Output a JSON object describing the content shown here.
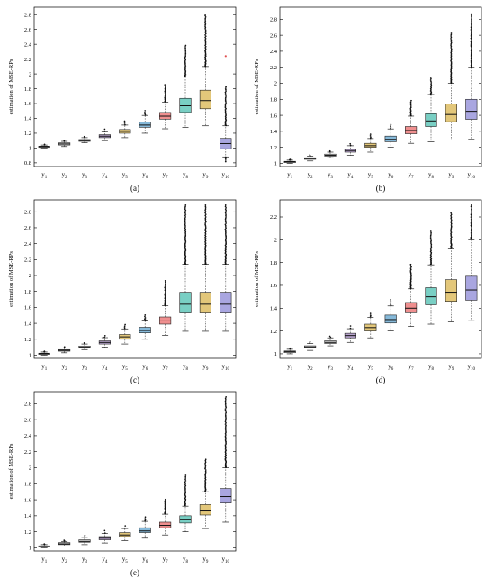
{
  "colors": [
    "#d9d9d9",
    "#d9d9d9",
    "#d9d9d9",
    "#b9a5cf",
    "#e3c77a",
    "#86b9d9",
    "#ef8f8f",
    "#79cfc4",
    "#e3c77a",
    "#a9a6e0"
  ],
  "categories": [
    {
      "base": "y",
      "sub": "1"
    },
    {
      "base": "y",
      "sub": "2"
    },
    {
      "base": "y",
      "sub": "3"
    },
    {
      "base": "y",
      "sub": "4"
    },
    {
      "base": "y",
      "sub": "5"
    },
    {
      "base": "y",
      "sub": "6"
    },
    {
      "base": "y",
      "sub": "7"
    },
    {
      "base": "y",
      "sub": "8"
    },
    {
      "base": "y",
      "sub": "9"
    },
    {
      "base": "y",
      "sub": "10"
    }
  ],
  "chart_data": [
    {
      "type": "box",
      "panel_label": "(a)",
      "ylabel": "estimation of MSE-RPs",
      "ylim": [
        0.75,
        2.9
      ],
      "yticks": [
        "0.8",
        "1",
        "1.2",
        "1.4",
        "1.6",
        "1.8",
        "2",
        "2.2",
        "2.4",
        "2.6",
        "2.8"
      ],
      "boxes": [
        {
          "q1": 1.01,
          "med": 1.02,
          "q3": 1.025,
          "lo": 1.0,
          "hi": 1.04,
          "out_hi": 1.045,
          "out_lo": null
        },
        {
          "q1": 1.04,
          "med": 1.055,
          "q3": 1.07,
          "lo": 1.02,
          "hi": 1.09,
          "out_hi": 1.1,
          "out_lo": null
        },
        {
          "q1": 1.09,
          "med": 1.1,
          "q3": 1.115,
          "lo": 1.07,
          "hi": 1.14,
          "out_hi": 1.15,
          "out_lo": null
        },
        {
          "q1": 1.14,
          "med": 1.16,
          "q3": 1.18,
          "lo": 1.1,
          "hi": 1.22,
          "out_hi": 1.25,
          "out_lo": null
        },
        {
          "q1": 1.2,
          "med": 1.225,
          "q3": 1.25,
          "lo": 1.14,
          "hi": 1.31,
          "out_hi": 1.36,
          "out_lo": null
        },
        {
          "q1": 1.28,
          "med": 1.31,
          "q3": 1.35,
          "lo": 1.2,
          "hi": 1.44,
          "out_hi": 1.5,
          "out_lo": null
        },
        {
          "q1": 1.39,
          "med": 1.43,
          "q3": 1.48,
          "lo": 1.26,
          "hi": 1.62,
          "out_hi": 1.85,
          "out_lo": null
        },
        {
          "q1": 1.48,
          "med": 1.57,
          "q3": 1.67,
          "lo": 1.28,
          "hi": 1.96,
          "out_hi": 2.38,
          "out_lo": null
        },
        {
          "q1": 1.53,
          "med": 1.64,
          "q3": 1.78,
          "lo": 1.3,
          "hi": 2.1,
          "out_hi": 2.8,
          "out_lo": null
        },
        {
          "q1": 0.99,
          "med": 1.06,
          "q3": 1.13,
          "lo": 0.88,
          "hi": 1.3,
          "out_hi": 1.82,
          "out_lo": 0.82,
          "extra": 2.24
        }
      ]
    },
    {
      "type": "box",
      "panel_label": "(b)",
      "ylabel": "estimation of MSE-RPs",
      "ylim": [
        0.96,
        2.95
      ],
      "yticks": [
        "1",
        "1.2",
        "1.4",
        "1.6",
        "1.8",
        "2",
        "2.2",
        "2.4",
        "2.6",
        "2.8"
      ],
      "boxes": [
        {
          "q1": 1.01,
          "med": 1.02,
          "q3": 1.025,
          "lo": 1.0,
          "hi": 1.04,
          "out_hi": 1.045,
          "out_lo": null
        },
        {
          "q1": 1.05,
          "med": 1.06,
          "q3": 1.07,
          "lo": 1.03,
          "hi": 1.09,
          "out_hi": 1.1,
          "out_lo": null
        },
        {
          "q1": 1.09,
          "med": 1.1,
          "q3": 1.115,
          "lo": 1.07,
          "hi": 1.14,
          "out_hi": 1.15,
          "out_lo": null
        },
        {
          "q1": 1.14,
          "med": 1.16,
          "q3": 1.18,
          "lo": 1.1,
          "hi": 1.22,
          "out_hi": 1.24,
          "out_lo": null
        },
        {
          "q1": 1.2,
          "med": 1.22,
          "q3": 1.25,
          "lo": 1.14,
          "hi": 1.31,
          "out_hi": 1.36,
          "out_lo": null
        },
        {
          "q1": 1.27,
          "med": 1.3,
          "q3": 1.34,
          "lo": 1.2,
          "hi": 1.43,
          "out_hi": 1.48,
          "out_lo": null
        },
        {
          "q1": 1.37,
          "med": 1.41,
          "q3": 1.46,
          "lo": 1.25,
          "hi": 1.59,
          "out_hi": 1.78,
          "out_lo": null
        },
        {
          "q1": 1.46,
          "med": 1.53,
          "q3": 1.62,
          "lo": 1.27,
          "hi": 1.86,
          "out_hi": 2.07,
          "out_lo": null
        },
        {
          "q1": 1.52,
          "med": 1.61,
          "q3": 1.74,
          "lo": 1.29,
          "hi": 2.0,
          "out_hi": 2.62,
          "out_lo": null
        },
        {
          "q1": 1.55,
          "med": 1.65,
          "q3": 1.8,
          "lo": 1.3,
          "hi": 2.2,
          "out_hi": 2.86,
          "out_lo": null
        }
      ]
    },
    {
      "type": "box",
      "panel_label": "(c)",
      "ylabel": "estimation of MSE-RPs",
      "ylim": [
        0.96,
        2.95
      ],
      "yticks": [
        "1",
        "1.2",
        "1.4",
        "1.6",
        "1.8",
        "2",
        "2.2",
        "2.4",
        "2.6",
        "2.8"
      ],
      "boxes": [
        {
          "q1": 1.01,
          "med": 1.02,
          "q3": 1.025,
          "lo": 1.0,
          "hi": 1.04,
          "out_hi": 1.045,
          "out_lo": null
        },
        {
          "q1": 1.05,
          "med": 1.06,
          "q3": 1.07,
          "lo": 1.03,
          "hi": 1.09,
          "out_hi": 1.1,
          "out_lo": null
        },
        {
          "q1": 1.09,
          "med": 1.1,
          "q3": 1.115,
          "lo": 1.07,
          "hi": 1.14,
          "out_hi": 1.15,
          "out_lo": null
        },
        {
          "q1": 1.14,
          "med": 1.16,
          "q3": 1.18,
          "lo": 1.1,
          "hi": 1.22,
          "out_hi": 1.24,
          "out_lo": null
        },
        {
          "q1": 1.2,
          "med": 1.23,
          "q3": 1.26,
          "lo": 1.14,
          "hi": 1.33,
          "out_hi": 1.38,
          "out_lo": null
        },
        {
          "q1": 1.28,
          "med": 1.31,
          "q3": 1.35,
          "lo": 1.2,
          "hi": 1.44,
          "out_hi": 1.5,
          "out_lo": null
        },
        {
          "q1": 1.39,
          "med": 1.43,
          "q3": 1.48,
          "lo": 1.25,
          "hi": 1.62,
          "out_hi": 1.93,
          "out_lo": null
        },
        {
          "q1": 1.53,
          "med": 1.64,
          "q3": 1.79,
          "lo": 1.3,
          "hi": 2.14,
          "out_hi": 2.88,
          "out_lo": null
        },
        {
          "q1": 1.53,
          "med": 1.64,
          "q3": 1.79,
          "lo": 1.3,
          "hi": 2.14,
          "out_hi": 2.88,
          "out_lo": null
        },
        {
          "q1": 1.53,
          "med": 1.64,
          "q3": 1.79,
          "lo": 1.3,
          "hi": 2.14,
          "out_hi": 2.88,
          "out_lo": null
        }
      ]
    },
    {
      "type": "box",
      "panel_label": "(d)",
      "ylabel": "estimation of MSE-RPs",
      "ylim": [
        0.96,
        2.35
      ],
      "yticks": [
        "1",
        "1.2",
        "1.4",
        "1.6",
        "1.8",
        "2",
        "2.2"
      ],
      "boxes": [
        {
          "q1": 1.01,
          "med": 1.02,
          "q3": 1.025,
          "lo": 1.0,
          "hi": 1.04,
          "out_hi": 1.045,
          "out_lo": null
        },
        {
          "q1": 1.05,
          "med": 1.06,
          "q3": 1.07,
          "lo": 1.03,
          "hi": 1.09,
          "out_hi": 1.1,
          "out_lo": null
        },
        {
          "q1": 1.09,
          "med": 1.1,
          "q3": 1.115,
          "lo": 1.07,
          "hi": 1.14,
          "out_hi": 1.15,
          "out_lo": null
        },
        {
          "q1": 1.14,
          "med": 1.16,
          "q3": 1.18,
          "lo": 1.1,
          "hi": 1.22,
          "out_hi": 1.24,
          "out_lo": null
        },
        {
          "q1": 1.2,
          "med": 1.23,
          "q3": 1.26,
          "lo": 1.14,
          "hi": 1.32,
          "out_hi": 1.36,
          "out_lo": null
        },
        {
          "q1": 1.27,
          "med": 1.3,
          "q3": 1.34,
          "lo": 1.2,
          "hi": 1.42,
          "out_hi": 1.47,
          "out_lo": null
        },
        {
          "q1": 1.36,
          "med": 1.4,
          "q3": 1.45,
          "lo": 1.24,
          "hi": 1.57,
          "out_hi": 1.78,
          "out_lo": null
        },
        {
          "q1": 1.43,
          "med": 1.5,
          "q3": 1.58,
          "lo": 1.26,
          "hi": 1.78,
          "out_hi": 2.07,
          "out_lo": null
        },
        {
          "q1": 1.46,
          "med": 1.54,
          "q3": 1.65,
          "lo": 1.28,
          "hi": 1.92,
          "out_hi": 2.23,
          "out_lo": null
        },
        {
          "q1": 1.47,
          "med": 1.56,
          "q3": 1.68,
          "lo": 1.29,
          "hi": 2.0,
          "out_hi": 2.3,
          "out_lo": null
        }
      ]
    },
    {
      "type": "box",
      "panel_label": "(e)",
      "ylabel": "estimation of MSE-RPs",
      "ylim": [
        0.96,
        2.95
      ],
      "yticks": [
        "1",
        "1.2",
        "1.4",
        "1.6",
        "1.8",
        "2",
        "2.2",
        "2.4",
        "2.6",
        "2.8"
      ],
      "boxes": [
        {
          "q1": 1.01,
          "med": 1.02,
          "q3": 1.025,
          "lo": 1.0,
          "hi": 1.04,
          "out_hi": 1.045,
          "out_lo": null
        },
        {
          "q1": 1.04,
          "med": 1.05,
          "q3": 1.065,
          "lo": 1.02,
          "hi": 1.08,
          "out_hi": 1.09,
          "out_lo": null
        },
        {
          "q1": 1.07,
          "med": 1.08,
          "q3": 1.1,
          "lo": 1.04,
          "hi": 1.13,
          "out_hi": 1.15,
          "out_lo": null
        },
        {
          "q1": 1.1,
          "med": 1.12,
          "q3": 1.14,
          "lo": 1.06,
          "hi": 1.18,
          "out_hi": 1.21,
          "out_lo": null
        },
        {
          "q1": 1.14,
          "med": 1.16,
          "q3": 1.19,
          "lo": 1.09,
          "hi": 1.24,
          "out_hi": 1.27,
          "out_lo": null
        },
        {
          "q1": 1.19,
          "med": 1.21,
          "q3": 1.25,
          "lo": 1.12,
          "hi": 1.33,
          "out_hi": 1.38,
          "out_lo": null
        },
        {
          "q1": 1.25,
          "med": 1.28,
          "q3": 1.32,
          "lo": 1.16,
          "hi": 1.42,
          "out_hi": 1.6,
          "out_lo": null
        },
        {
          "q1": 1.31,
          "med": 1.35,
          "q3": 1.4,
          "lo": 1.2,
          "hi": 1.52,
          "out_hi": 1.9,
          "out_lo": null
        },
        {
          "q1": 1.41,
          "med": 1.46,
          "q3": 1.54,
          "lo": 1.24,
          "hi": 1.7,
          "out_hi": 2.1,
          "out_lo": null
        },
        {
          "q1": 1.56,
          "med": 1.64,
          "q3": 1.74,
          "lo": 1.32,
          "hi": 2.0,
          "out_hi": 2.88,
          "out_lo": null
        }
      ]
    }
  ]
}
